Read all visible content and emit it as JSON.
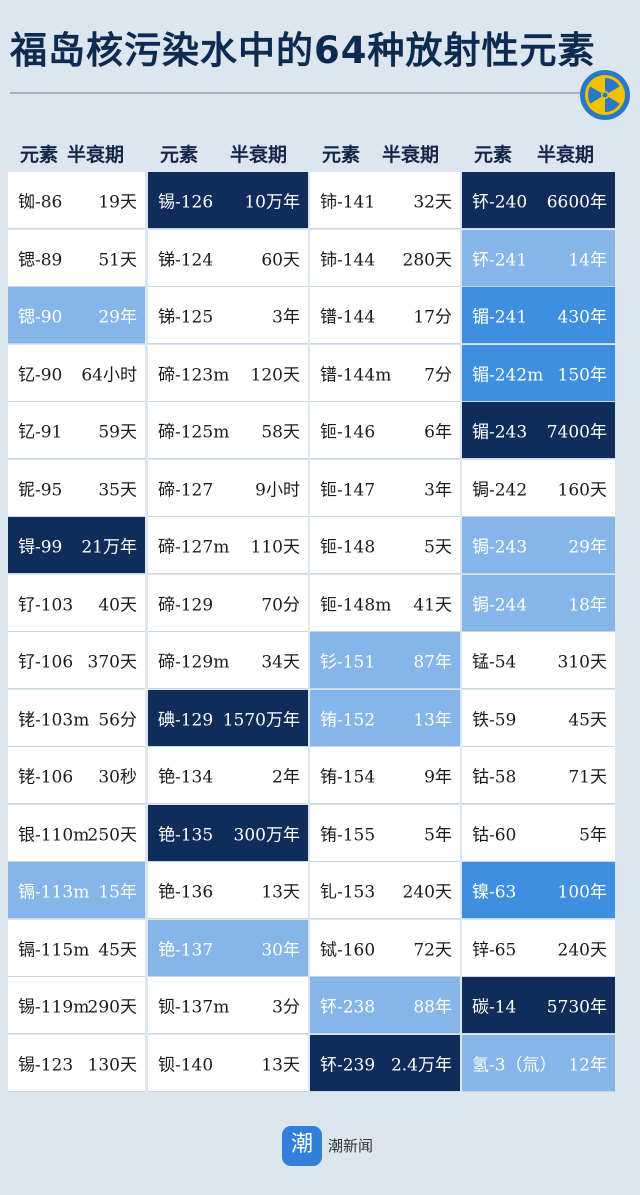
{
  "header": {
    "title": "福岛核污染水中的64种放射性元素"
  },
  "table": {
    "column_headers": [
      "元素",
      "半衰期"
    ],
    "groups": [
      [
        {
          "element": "铷-86",
          "half_life": "19天",
          "shade": "white"
        },
        {
          "element": "锶-89",
          "half_life": "51天",
          "shade": "white"
        },
        {
          "element": "锶-90",
          "half_life": "29年",
          "shade": "light"
        },
        {
          "element": "钇-90",
          "half_life": "64小时",
          "shade": "white"
        },
        {
          "element": "钇-91",
          "half_life": "59天",
          "shade": "white"
        },
        {
          "element": "铌-95",
          "half_life": "35天",
          "shade": "white"
        },
        {
          "element": "锝-99",
          "half_life": "21万年",
          "shade": "dark"
        },
        {
          "element": "钌-103",
          "half_life": "40天",
          "shade": "white"
        },
        {
          "element": "钌-106",
          "half_life": "370天",
          "shade": "white"
        },
        {
          "element": "铑-103m",
          "half_life": "56分",
          "shade": "white"
        },
        {
          "element": "铑-106",
          "half_life": "30秒",
          "shade": "white"
        },
        {
          "element": "银-110m",
          "half_life": "250天",
          "shade": "white"
        },
        {
          "element": "镉-113m",
          "half_life": "15年",
          "shade": "light"
        },
        {
          "element": "镉-115m",
          "half_life": "45天",
          "shade": "white"
        },
        {
          "element": "锡-119m",
          "half_life": "290天",
          "shade": "white"
        },
        {
          "element": "锡-123",
          "half_life": "130天",
          "shade": "white"
        }
      ],
      [
        {
          "element": "锡-126",
          "half_life": "10万年",
          "shade": "dark"
        },
        {
          "element": "锑-124",
          "half_life": "60天",
          "shade": "white"
        },
        {
          "element": "锑-125",
          "half_life": "3年",
          "shade": "white"
        },
        {
          "element": "碲-123m",
          "half_life": "120天",
          "shade": "white"
        },
        {
          "element": "碲-125m",
          "half_life": "58天",
          "shade": "white"
        },
        {
          "element": "碲-127",
          "half_life": "9小时",
          "shade": "white"
        },
        {
          "element": "碲-127m",
          "half_life": "110天",
          "shade": "white"
        },
        {
          "element": "碲-129",
          "half_life": "70分",
          "shade": "white"
        },
        {
          "element": "碲-129m",
          "half_life": "34天",
          "shade": "white"
        },
        {
          "element": "碘-129",
          "half_life": "1570万年",
          "shade": "dark"
        },
        {
          "element": "铯-134",
          "half_life": "2年",
          "shade": "white"
        },
        {
          "element": "铯-135",
          "half_life": "300万年",
          "shade": "dark"
        },
        {
          "element": "铯-136",
          "half_life": "13天",
          "shade": "white"
        },
        {
          "element": "铯-137",
          "half_life": "30年",
          "shade": "light"
        },
        {
          "element": "钡-137m",
          "half_life": "3分",
          "shade": "white"
        },
        {
          "element": "钡-140",
          "half_life": "13天",
          "shade": "white"
        }
      ],
      [
        {
          "element": "铈-141",
          "half_life": "32天",
          "shade": "white"
        },
        {
          "element": "铈-144",
          "half_life": "280天",
          "shade": "white"
        },
        {
          "element": "镨-144",
          "half_life": "17分",
          "shade": "white"
        },
        {
          "element": "镨-144m",
          "half_life": "7分",
          "shade": "white"
        },
        {
          "element": "钷-146",
          "half_life": "6年",
          "shade": "white"
        },
        {
          "element": "钷-147",
          "half_life": "3年",
          "shade": "white"
        },
        {
          "element": "钷-148",
          "half_life": "5天",
          "shade": "white"
        },
        {
          "element": "钷-148m",
          "half_life": "41天",
          "shade": "white"
        },
        {
          "element": "钐-151",
          "half_life": "87年",
          "shade": "light"
        },
        {
          "element": "铕-152",
          "half_life": "13年",
          "shade": "light"
        },
        {
          "element": "铕-154",
          "half_life": "9年",
          "shade": "white"
        },
        {
          "element": "铕-155",
          "half_life": "5年",
          "shade": "white"
        },
        {
          "element": "钆-153",
          "half_life": "240天",
          "shade": "white"
        },
        {
          "element": "铽-160",
          "half_life": "72天",
          "shade": "white"
        },
        {
          "element": "钚-238",
          "half_life": "88年",
          "shade": "light"
        },
        {
          "element": "钚-239",
          "half_life": "2.4万年",
          "shade": "dark"
        }
      ],
      [
        {
          "element": "钚-240",
          "half_life": "6600年",
          "shade": "dark"
        },
        {
          "element": "钚-241",
          "half_life": "14年",
          "shade": "light"
        },
        {
          "element": "镅-241",
          "half_life": "430年",
          "shade": "mid"
        },
        {
          "element": "镅-242m",
          "half_life": "150年",
          "shade": "mid"
        },
        {
          "element": "镅-243",
          "half_life": "7400年",
          "shade": "dark"
        },
        {
          "element": "锔-242",
          "half_life": "160天",
          "shade": "white"
        },
        {
          "element": "锔-243",
          "half_life": "29年",
          "shade": "light"
        },
        {
          "element": "锔-244",
          "half_life": "18年",
          "shade": "light"
        },
        {
          "element": "锰-54",
          "half_life": "310天",
          "shade": "white"
        },
        {
          "element": "铁-59",
          "half_life": "45天",
          "shade": "white"
        },
        {
          "element": "钴-58",
          "half_life": "71天",
          "shade": "white"
        },
        {
          "element": "钴-60",
          "half_life": "5年",
          "shade": "white"
        },
        {
          "element": "镍-63",
          "half_life": "100年",
          "shade": "mid"
        },
        {
          "element": "锌-65",
          "half_life": "240天",
          "shade": "white"
        },
        {
          "element": "碳-14",
          "half_life": "5730年",
          "shade": "dark"
        },
        {
          "element": "氢-3（氚）",
          "half_life": "12年",
          "shade": "light"
        }
      ]
    ]
  },
  "footer": {
    "logo_char": "潮",
    "brand": "潮新闻"
  }
}
